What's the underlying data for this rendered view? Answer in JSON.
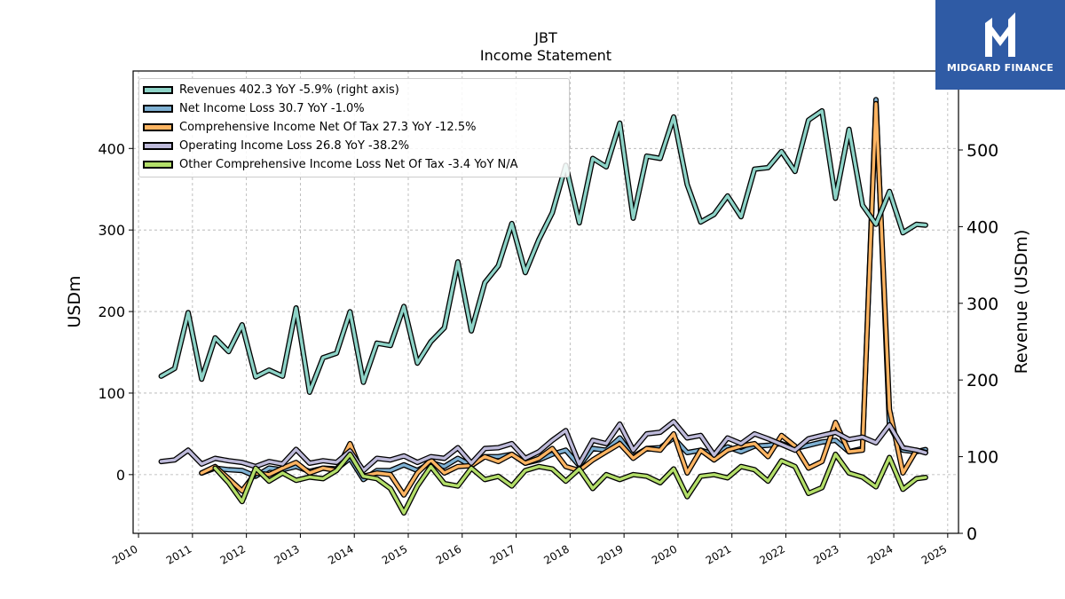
{
  "brand": {
    "name": "MIDGARD FINANCE",
    "bg_color": "#2f5ba5"
  },
  "chart_data": {
    "type": "line",
    "title": "JBT",
    "subtitle": "Income Statement",
    "ylabel": "USDm",
    "ylabel_right": "Revenue (USDm)",
    "ylim_left": [
      -72,
      495
    ],
    "ylim_right": [
      0,
      603
    ],
    "yticks_left": [
      0,
      100,
      200,
      300,
      400
    ],
    "yticks_right": [
      0,
      100,
      200,
      300,
      400,
      500
    ],
    "xlim": [
      2009.9,
      2025.2
    ],
    "xticks": [
      2010,
      2011,
      2012,
      2013,
      2014,
      2015,
      2016,
      2017,
      2018,
      2019,
      2020,
      2021,
      2022,
      2023,
      2024,
      2025
    ],
    "grid": true,
    "legend_position": "top-left",
    "x": [
      2010.42,
      2010.67,
      2010.92,
      2011.17,
      2011.42,
      2011.67,
      2011.92,
      2012.17,
      2012.42,
      2012.67,
      2012.92,
      2013.17,
      2013.42,
      2013.67,
      2013.92,
      2014.17,
      2014.42,
      2014.67,
      2014.92,
      2015.17,
      2015.42,
      2015.67,
      2015.92,
      2016.17,
      2016.42,
      2016.67,
      2016.92,
      2017.17,
      2017.42,
      2017.67,
      2017.92,
      2018.17,
      2018.42,
      2018.67,
      2018.92,
      2019.17,
      2019.42,
      2019.67,
      2019.92,
      2020.17,
      2020.42,
      2020.67,
      2020.92,
      2021.17,
      2021.42,
      2021.67,
      2021.92,
      2022.17,
      2022.42,
      2022.67,
      2022.92,
      2023.17,
      2023.42,
      2023.67,
      2023.92,
      2024.17,
      2024.42,
      2024.59
    ],
    "series": [
      {
        "name": "Revenues  402.3 YoY -5.9% (right axis)",
        "axis": "right",
        "color": "#8dd3c7",
        "values": [
          205,
          215,
          288,
          201,
          255,
          237,
          272,
          204,
          213,
          205,
          294,
          184,
          229,
          235,
          289,
          197,
          248,
          245,
          296,
          222,
          250,
          268,
          354,
          264,
          327,
          349,
          404,
          340,
          383,
          418,
          480,
          405,
          489,
          478,
          535,
          411,
          492,
          489,
          543,
          455,
          406,
          416,
          440,
          413,
          475,
          477,
          498,
          472,
          539,
          551,
          437,
          527,
          428,
          403,
          446,
          392,
          403,
          402
        ]
      },
      {
        "name": "Net Income Loss  30.7 YoY -1.0%",
        "axis": "left",
        "color": "#7fb1d3",
        "values": [
          null,
          null,
          null,
          2,
          8,
          6,
          5,
          -2,
          8,
          6,
          10,
          4,
          8,
          7,
          20,
          -6,
          5,
          5,
          12,
          5,
          15,
          10,
          20,
          11,
          22,
          22,
          25,
          14,
          18,
          25,
          30,
          11,
          32,
          30,
          45,
          22,
          32,
          33,
          45,
          27,
          30,
          25,
          34,
          28,
          35,
          36,
          38,
          32,
          36,
          40,
          42,
          28,
          32,
          460,
          60,
          30,
          28,
          30.7
        ]
      },
      {
        "name": "Comprehensive Income Net Of Tax  27.3 YoY -12.5%",
        "axis": "left",
        "color": "#fdb462",
        "values": [
          null,
          null,
          null,
          2,
          10,
          -5,
          -20,
          2,
          0,
          8,
          15,
          2,
          8,
          5,
          38,
          -2,
          2,
          0,
          -25,
          2,
          18,
          2,
          10,
          11,
          22,
          16,
          25,
          14,
          20,
          32,
          10,
          5,
          18,
          28,
          38,
          20,
          32,
          30,
          50,
          2,
          30,
          18,
          30,
          35,
          38,
          22,
          48,
          35,
          8,
          16,
          64,
          28,
          30,
          455,
          80,
          2,
          30,
          27.3
        ]
      },
      {
        "name": "Operating Income Loss  26.8 YoY -38.2%",
        "axis": "left",
        "color": "#bebada",
        "values": [
          16,
          18,
          30,
          13,
          20,
          17,
          15,
          10,
          16,
          13,
          31,
          14,
          17,
          15,
          29,
          5,
          20,
          18,
          23,
          15,
          22,
          20,
          33,
          14,
          32,
          33,
          38,
          20,
          28,
          42,
          54,
          13,
          42,
          38,
          62,
          30,
          50,
          52,
          65,
          45,
          48,
          24,
          45,
          38,
          50,
          44,
          37,
          30,
          44,
          48,
          52,
          43,
          46,
          39,
          61,
          33,
          30,
          26.8
        ]
      },
      {
        "name": "Other Comprehensive Income Loss Net Of Tax  -3.4 YoY N/A",
        "axis": "left",
        "color": "#b3de69",
        "values": [
          null,
          null,
          null,
          null,
          8,
          -10,
          -33,
          8,
          -8,
          2,
          -7,
          -3,
          -5,
          5,
          25,
          -2,
          -5,
          -17,
          -47,
          -14,
          10,
          -11,
          -14,
          8,
          -6,
          -2,
          -14,
          5,
          10,
          7,
          -8,
          7,
          -17,
          0,
          -6,
          0,
          -2,
          -10,
          7,
          -27,
          -2,
          0,
          -4,
          10,
          6,
          -8,
          17,
          10,
          -23,
          -16,
          25,
          2,
          -3,
          -15,
          21,
          -18,
          -5,
          -3.4
        ]
      }
    ]
  }
}
